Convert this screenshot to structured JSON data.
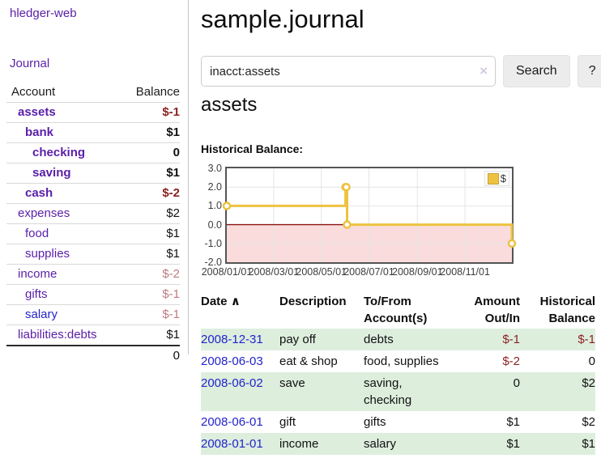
{
  "app": {
    "brand": "hledger-web"
  },
  "sidebar": {
    "journal_label": "Journal",
    "accounts_table": {
      "header_account": "Account",
      "header_balance": "Balance",
      "rows": [
        {
          "name": "assets",
          "depth": 1,
          "bold": true,
          "balance": "$-1",
          "neg": "strong"
        },
        {
          "name": "bank",
          "depth": 2,
          "bold": true,
          "balance": "$1"
        },
        {
          "name": "checking",
          "depth": 3,
          "bold": true,
          "balance": "0"
        },
        {
          "name": "saving",
          "depth": 3,
          "bold": true,
          "balance": "$1"
        },
        {
          "name": "cash",
          "depth": 2,
          "bold": true,
          "balance": "$-2",
          "neg": "strong"
        },
        {
          "name": "expenses",
          "depth": 1,
          "bold": false,
          "balance": "$2"
        },
        {
          "name": "food",
          "depth": 2,
          "bold": false,
          "balance": "$1"
        },
        {
          "name": "supplies",
          "depth": 2,
          "bold": false,
          "balance": "$1"
        },
        {
          "name": "income",
          "depth": 1,
          "bold": false,
          "balance": "$-2",
          "neg": "soft"
        },
        {
          "name": "gifts",
          "depth": 2,
          "bold": false,
          "balance": "$-1",
          "neg": "soft"
        },
        {
          "name": "salary",
          "depth": 2,
          "bold": false,
          "balance": "$-1",
          "neg": "soft",
          "link_color": "blue"
        },
        {
          "name": "liabilities:debts",
          "depth": 1,
          "bold": false,
          "balance": "$1"
        }
      ],
      "total": "0"
    }
  },
  "main": {
    "title": "sample.journal",
    "search": {
      "value": "inacct:assets",
      "clear_icon": "×",
      "button_label": "Search",
      "help_label": "?"
    },
    "account_heading": "assets"
  },
  "chart_data": {
    "type": "line",
    "line_style": "step",
    "title": "Historical Balance:",
    "series": [
      {
        "name": "$",
        "color": "#edc240",
        "points": [
          [
            "2008-01-01",
            1.0
          ],
          [
            "2008-06-01",
            2.0
          ],
          [
            "2008-06-02",
            2.0
          ],
          [
            "2008-06-03",
            0.0
          ],
          [
            "2008-12-31",
            -1.0
          ]
        ]
      }
    ],
    "xlim": [
      "2008-01-01",
      "2008-12-31"
    ],
    "ylim": [
      -2.0,
      3.0
    ],
    "x_tick_labels": [
      "2008/01/01",
      "2008/03/01",
      "2008/05/01",
      "2008/07/01",
      "2008/09/01",
      "2008/11/01"
    ],
    "y_tick_labels": [
      "3.0",
      "2.0",
      "1.0",
      "0.0",
      "-1.0",
      "-2.0"
    ],
    "grid": true,
    "legend_position": "top-right",
    "negative_region_fill": "#fadcdc",
    "zero_line_color": "#8b1212",
    "grid_color": "#e4e4e4",
    "frame_color": "#545454"
  },
  "register": {
    "sort_icon": "∧",
    "headers": {
      "date": "Date",
      "description": "Description",
      "accounts": "To/From Account(s)",
      "amount": "Amount Out/In",
      "balance": "Historical Balance"
    },
    "rows": [
      {
        "date": "2008-12-31",
        "description": "pay off",
        "accounts": [
          "debts"
        ],
        "amount": "$-1",
        "balance": "$-1"
      },
      {
        "date": "2008-06-03",
        "description": "eat & shop",
        "accounts": [
          "food, supplies"
        ],
        "amount": "$-2",
        "balance": "0"
      },
      {
        "date": "2008-06-02",
        "description": "save",
        "accounts": [
          "saving,",
          "checking"
        ],
        "amount": "0",
        "balance": "$2"
      },
      {
        "date": "2008-06-01",
        "description": "gift",
        "accounts": [
          "gifts"
        ],
        "amount": "$1",
        "balance": "$2"
      },
      {
        "date": "2008-01-01",
        "description": "income",
        "accounts": [
          "salary"
        ],
        "amount": "$1",
        "balance": "$1"
      }
    ]
  },
  "colors": {
    "link_purple": "#5a1ea9",
    "link_blue": "#2323cc",
    "negative_strong": "#8c2222",
    "negative_soft": "#bd7c7e",
    "row_highlight_green": "#ddeedd",
    "chart_line": "#edc240",
    "chart_negative_fill": "#fadcdc",
    "chart_zero_line": "#8b1212",
    "button_bg": "#ececec"
  }
}
